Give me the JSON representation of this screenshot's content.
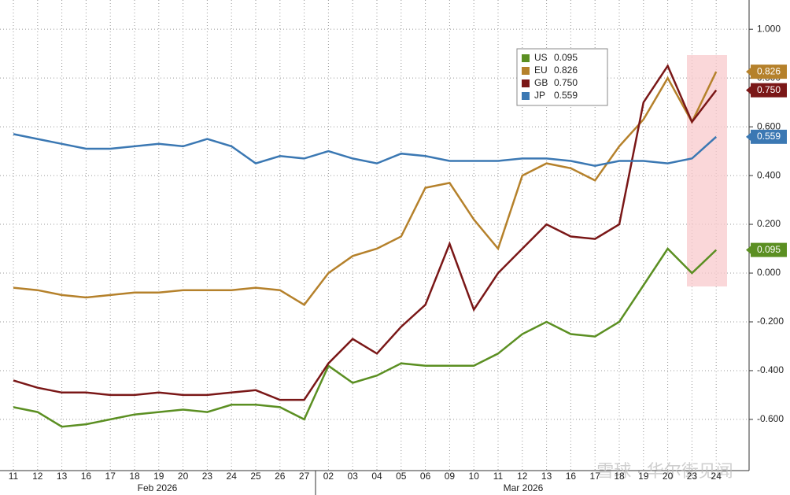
{
  "chart_data": {
    "type": "line",
    "categories": [
      "11",
      "12",
      "13",
      "16",
      "17",
      "18",
      "19",
      "20",
      "23",
      "24",
      "25",
      "26",
      "27",
      "02",
      "03",
      "04",
      "05",
      "06",
      "09",
      "10",
      "11",
      "12",
      "13",
      "16",
      "17",
      "18",
      "19",
      "20",
      "23",
      "24"
    ],
    "months": [
      "Feb 2026",
      "Mar 2026"
    ],
    "series": [
      {
        "name": "US",
        "color": "#5b8f22",
        "values": [
          -0.55,
          -0.57,
          -0.63,
          -0.62,
          -0.6,
          -0.58,
          -0.57,
          -0.56,
          -0.57,
          -0.54,
          -0.54,
          -0.55,
          -0.6,
          -0.38,
          -0.45,
          -0.42,
          -0.37,
          -0.38,
          -0.38,
          -0.38,
          -0.33,
          -0.25,
          -0.2,
          -0.25,
          -0.26,
          -0.2,
          -0.05,
          0.1,
          0.0,
          0.095
        ],
        "value_labels": [
          null,
          null,
          null,
          null,
          null,
          null,
          null,
          null,
          null,
          null,
          null,
          null,
          null,
          null,
          null,
          null,
          null,
          null,
          null,
          null,
          null,
          null,
          null,
          null,
          null,
          null,
          null,
          null,
          null,
          "0.095"
        ]
      },
      {
        "name": "EU",
        "color": "#b5812b",
        "values": [
          -0.06,
          -0.07,
          -0.09,
          -0.1,
          -0.09,
          -0.08,
          -0.08,
          -0.07,
          -0.07,
          -0.07,
          -0.06,
          -0.07,
          -0.13,
          0.0,
          0.07,
          0.1,
          0.15,
          0.35,
          0.37,
          0.22,
          0.1,
          0.4,
          0.45,
          0.43,
          0.38,
          0.52,
          0.63,
          0.8,
          0.62,
          0.826
        ],
        "value_labels": [
          null,
          null,
          null,
          null,
          null,
          null,
          null,
          null,
          null,
          null,
          null,
          null,
          null,
          null,
          null,
          null,
          null,
          null,
          null,
          null,
          null,
          null,
          null,
          null,
          null,
          null,
          null,
          null,
          null,
          "0.826"
        ]
      },
      {
        "name": "GB",
        "color": "#7a1717",
        "values": [
          -0.44,
          -0.47,
          -0.49,
          -0.49,
          -0.5,
          -0.5,
          -0.49,
          -0.5,
          -0.5,
          -0.49,
          -0.48,
          -0.52,
          -0.52,
          -0.37,
          -0.27,
          -0.33,
          -0.22,
          -0.13,
          0.12,
          -0.15,
          0.0,
          0.1,
          0.2,
          0.15,
          0.14,
          0.2,
          0.7,
          0.85,
          0.62,
          0.75
        ],
        "value_labels": [
          null,
          null,
          null,
          null,
          null,
          null,
          null,
          null,
          null,
          null,
          null,
          null,
          null,
          null,
          null,
          null,
          null,
          null,
          null,
          null,
          null,
          null,
          null,
          null,
          null,
          null,
          null,
          null,
          null,
          "0.750"
        ]
      },
      {
        "name": "JP",
        "color": "#3b78b3",
        "values": [
          0.57,
          0.55,
          0.53,
          0.51,
          0.51,
          0.52,
          0.53,
          0.52,
          0.55,
          0.52,
          0.45,
          0.48,
          0.47,
          0.5,
          0.47,
          0.45,
          0.49,
          0.48,
          0.46,
          0.46,
          0.46,
          0.47,
          0.47,
          0.46,
          0.44,
          0.46,
          0.46,
          0.45,
          0.47,
          0.559
        ],
        "value_labels": [
          null,
          null,
          null,
          null,
          null,
          null,
          null,
          null,
          null,
          null,
          null,
          null,
          null,
          null,
          null,
          null,
          null,
          null,
          null,
          null,
          null,
          null,
          null,
          null,
          null,
          null,
          null,
          null,
          null,
          "0.559"
        ]
      }
    ],
    "ylim": [
      -0.81,
      1.12
    ],
    "yticks": [
      {
        "value": -0.6,
        "label": "-0.600"
      },
      {
        "value": -0.4,
        "label": "-0.400"
      },
      {
        "value": -0.2,
        "label": "-0.200"
      },
      {
        "value": 0,
        "label": "0.000"
      },
      {
        "value": 0.2,
        "label": "0.200"
      },
      {
        "value": 0.4,
        "label": "0.400"
      },
      {
        "value": 0.6,
        "label": "0.600"
      },
      {
        "value": 0.8,
        "label": "0.800"
      },
      {
        "value": 1.0,
        "label": "1.000"
      }
    ],
    "grid": true,
    "legend": "top-right",
    "watermark": "雪球 · 华尔街见闻"
  }
}
